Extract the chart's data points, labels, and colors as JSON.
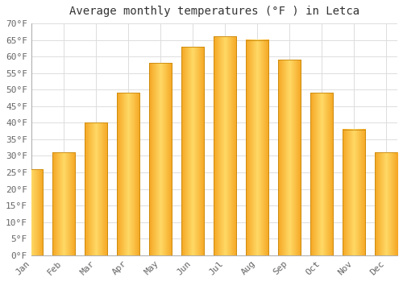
{
  "title": "Average monthly temperatures (°F ) in Letca",
  "months": [
    "Jan",
    "Feb",
    "Mar",
    "Apr",
    "May",
    "Jun",
    "Jul",
    "Aug",
    "Sep",
    "Oct",
    "Nov",
    "Dec"
  ],
  "values": [
    26,
    31,
    40,
    49,
    58,
    63,
    66,
    65,
    59,
    49,
    38,
    31
  ],
  "bar_color": "#FFA500",
  "bar_face_color": "#FFB726",
  "bar_gradient_light": "#FFD966",
  "bar_gradient_dark": "#F5A623",
  "bar_edge_color": "#C8870A",
  "ylim": [
    0,
    70
  ],
  "ytick_step": 5,
  "background_color": "#ffffff",
  "grid_color": "#dddddd",
  "title_fontsize": 10,
  "tick_fontsize": 8
}
